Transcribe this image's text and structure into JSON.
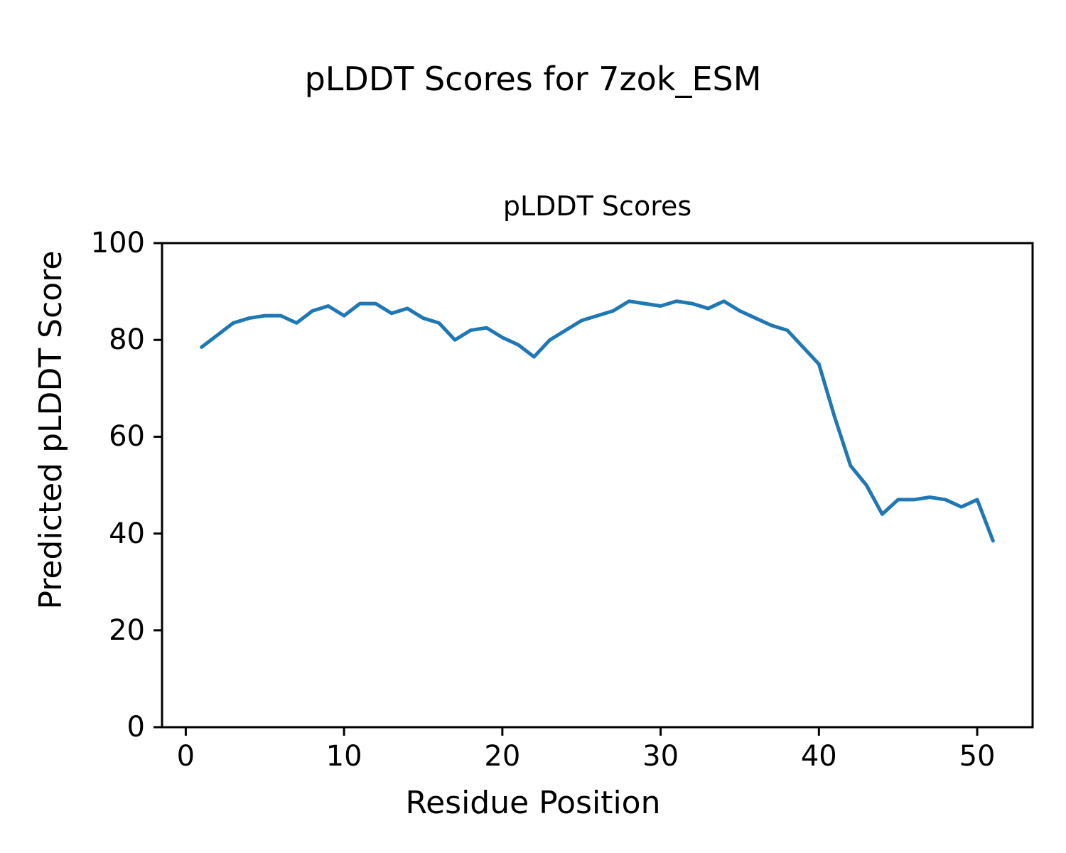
{
  "chart_data": {
    "type": "line",
    "suptitle": "pLDDT Scores for 7zok_ESM",
    "title": "pLDDT Scores",
    "xlabel": "Residue Position",
    "ylabel": "Predicted pLDDT Score",
    "x": [
      1,
      2,
      3,
      4,
      5,
      6,
      7,
      8,
      9,
      10,
      11,
      12,
      13,
      14,
      15,
      16,
      17,
      18,
      19,
      20,
      21,
      22,
      23,
      24,
      25,
      26,
      27,
      28,
      29,
      30,
      31,
      32,
      33,
      34,
      35,
      36,
      37,
      38,
      39,
      40,
      41,
      42,
      43,
      44,
      45,
      46,
      47,
      48,
      49,
      50,
      51
    ],
    "series": [
      {
        "name": "pLDDT",
        "color": "#1f77b4",
        "values": [
          78.5,
          81,
          83.5,
          84.5,
          85,
          85,
          83.5,
          86,
          87,
          85,
          87.5,
          87.5,
          85.5,
          86.5,
          84.5,
          83.5,
          80,
          82,
          82.5,
          80.5,
          79,
          76.5,
          80,
          82,
          84,
          85,
          86,
          88,
          87.5,
          87,
          88,
          87.5,
          86.5,
          88,
          86,
          84.5,
          83,
          82,
          78.5,
          75,
          64,
          54,
          50,
          44,
          47,
          47,
          47.5,
          47,
          45.5,
          47,
          38.5
        ]
      }
    ],
    "xlim": [
      -1.5,
      53.5
    ],
    "ylim": [
      0,
      100
    ],
    "xticks": [
      0,
      10,
      20,
      30,
      40,
      50
    ],
    "yticks": [
      0,
      20,
      40,
      60,
      80,
      100
    ],
    "grid": false,
    "legend": "none",
    "background_color": "#ffffff",
    "axis_color": "#000000"
  }
}
